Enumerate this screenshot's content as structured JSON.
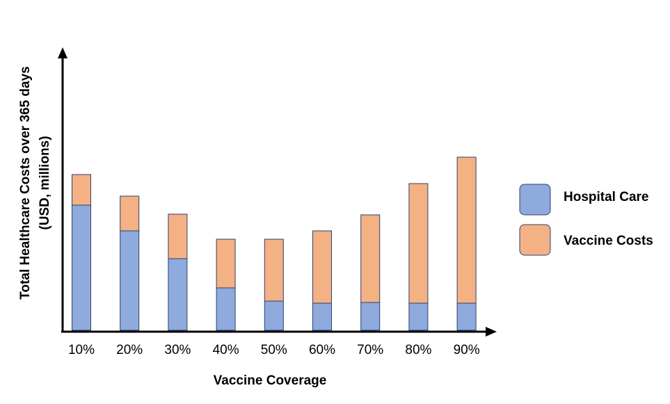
{
  "chart_data": {
    "type": "bar",
    "stacked": true,
    "title": "",
    "xlabel": "Vaccine Coverage",
    "ylabel_line1": "Total Healthcare Costs over 365 days",
    "ylabel_line2": "(USD, millions)",
    "categories": [
      "10%",
      "20%",
      "30%",
      "40%",
      "50%",
      "60%",
      "70%",
      "80%",
      "90%"
    ],
    "series": [
      {
        "name": "Hospital Care",
        "color": "#8faadc",
        "values": [
          180,
          143,
          103,
          61,
          42,
          39,
          40,
          39,
          39
        ]
      },
      {
        "name": "Vaccine Costs",
        "color": "#f4b183",
        "values": [
          44,
          50,
          64,
          70,
          89,
          104,
          126,
          172,
          210
        ]
      }
    ],
    "ylim": [
      0,
      400
    ],
    "y_ticks_shown": false,
    "grid": false,
    "legend_position": "right"
  }
}
